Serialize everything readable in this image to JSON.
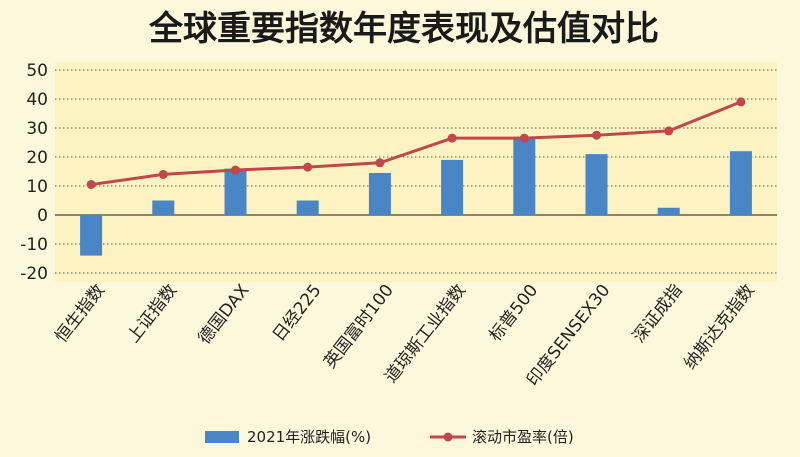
{
  "chart_data": {
    "type": "bar",
    "title": "全球重要指数年度表现及估值对比",
    "categories": [
      "恒生指数",
      "上证指数",
      "德国DAX",
      "日经225",
      "英国富时100",
      "道琼斯工业指数",
      "标普500",
      "印度SENSEX30",
      "深证成指",
      "纳斯达克指数"
    ],
    "series": [
      {
        "name": "2021年涨跌幅(%)",
        "type": "bar",
        "color": "#4a86c6",
        "values": [
          -14,
          5,
          16,
          5,
          14.5,
          19,
          27,
          21,
          2.5,
          22
        ]
      },
      {
        "name": "滚动市盈率(倍)",
        "type": "line",
        "color": "#c0474a",
        "values": [
          10.5,
          14,
          15.5,
          16.5,
          18,
          26.5,
          26.5,
          27.5,
          29,
          39
        ]
      }
    ],
    "y_ticks": [
      50,
      40,
      30,
      20,
      10,
      0,
      -10,
      -20
    ],
    "ylim": [
      -20,
      50
    ],
    "grid": true,
    "legend_position": "bottom"
  }
}
